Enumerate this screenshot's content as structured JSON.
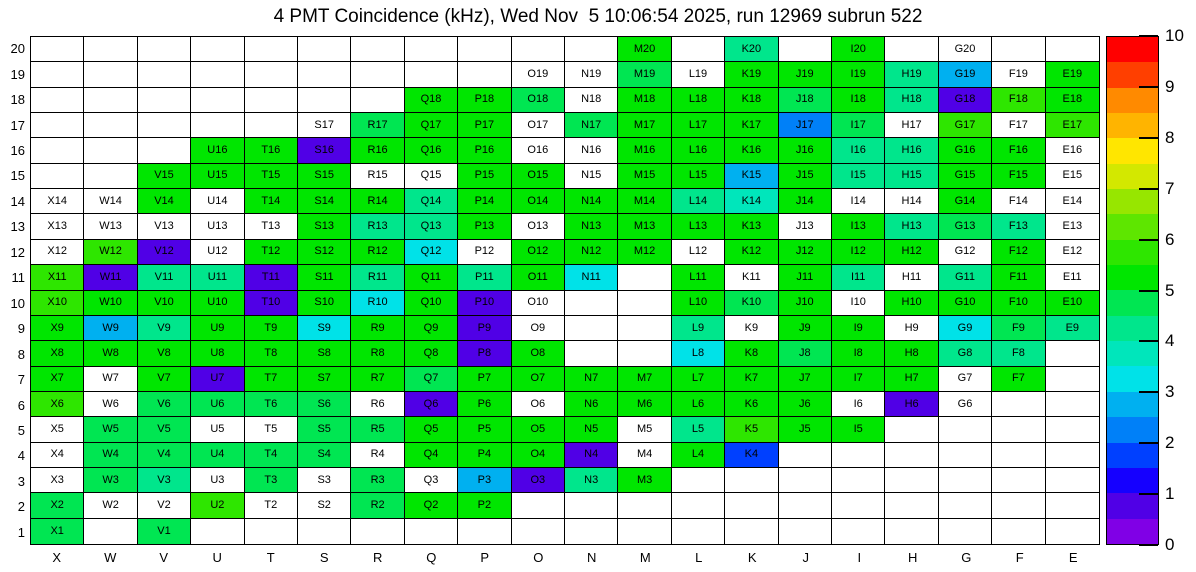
{
  "title": "4 PMT Coincidence (kHz), Wed Nov  5 10:06:54 2025, run 12969 subrun 522",
  "chart_data": {
    "type": "heatmap",
    "title": "4 PMT Coincidence (kHz), Wed Nov  5 10:06:54 2025, run 12969 subrun 522",
    "unit": "kHz",
    "columns": [
      "X",
      "W",
      "V",
      "U",
      "T",
      "S",
      "R",
      "Q",
      "P",
      "O",
      "N",
      "M",
      "L",
      "K",
      "J",
      "I",
      "H",
      "G",
      "F",
      "E"
    ],
    "rows": [
      20,
      19,
      18,
      17,
      16,
      15,
      14,
      13,
      12,
      11,
      10,
      9,
      8,
      7,
      6,
      5,
      4,
      3,
      2,
      1
    ],
    "scale": {
      "min": 0,
      "max": 10,
      "ticks": [
        0,
        1,
        2,
        3,
        4,
        5,
        6,
        7,
        8,
        9,
        10
      ]
    },
    "colormap_bands": [
      "#8000e6",
      "#5000e6",
      "#1500ff",
      "#0040ff",
      "#0080f8",
      "#00b0f0",
      "#00e2e8",
      "#00e6bb",
      "#00e68c",
      "#00e652",
      "#00e600",
      "#2ee600",
      "#5ee600",
      "#97e600",
      "#d3e800",
      "#ffe600",
      "#ffb400",
      "#ff8a00",
      "#ff3f00",
      "#ff0000"
    ],
    "cells": [
      [
        null,
        null,
        null,
        null,
        null,
        null,
        null,
        null,
        null,
        null,
        null,
        [
          "M20",
          5.2
        ],
        null,
        [
          "K20",
          4.3
        ],
        null,
        [
          "I20",
          5.2
        ],
        null,
        [
          "G20",
          null
        ],
        null,
        null
      ],
      [
        null,
        null,
        null,
        null,
        null,
        null,
        null,
        null,
        null,
        [
          "O19",
          null
        ],
        [
          "N19",
          null
        ],
        [
          "M19",
          4.7
        ],
        [
          "L19",
          null
        ],
        [
          "K19",
          5.2
        ],
        [
          "J19",
          5.2
        ],
        [
          "I19",
          5.2
        ],
        [
          "H19",
          4.3
        ],
        [
          "G19",
          2.7
        ],
        [
          "F19",
          null
        ],
        [
          "E19",
          5.2
        ]
      ],
      [
        null,
        null,
        null,
        null,
        null,
        null,
        null,
        [
          "Q18",
          5.2
        ],
        [
          "P18",
          5.2
        ],
        [
          "O18",
          4.7
        ],
        [
          "N18",
          null
        ],
        [
          "M18",
          5.2
        ],
        [
          "L18",
          5.2
        ],
        [
          "K18",
          5.2
        ],
        [
          "J18",
          4.7
        ],
        [
          "I18",
          5.2
        ],
        [
          "H18",
          4.3
        ],
        [
          "G18",
          0.7
        ],
        [
          "F18",
          5.8
        ],
        [
          "E18",
          5.2
        ]
      ],
      [
        null,
        null,
        null,
        null,
        null,
        [
          "S17",
          null
        ],
        [
          "R17",
          4.7
        ],
        [
          "Q17",
          5.2
        ],
        [
          "P17",
          5.2
        ],
        [
          "O17",
          null
        ],
        [
          "N17",
          4.7
        ],
        [
          "M17",
          5.2
        ],
        [
          "L17",
          5.2
        ],
        [
          "K17",
          5.2
        ],
        [
          "J17",
          2.2
        ],
        [
          "I17",
          4.7
        ],
        [
          "H17",
          null
        ],
        [
          "G17",
          5.8
        ],
        [
          "F17",
          null
        ],
        [
          "E17",
          5.8
        ]
      ],
      [
        null,
        null,
        null,
        [
          "U16",
          5.2
        ],
        [
          "T16",
          5.2
        ],
        [
          "S16",
          0.7
        ],
        [
          "R16",
          5.2
        ],
        [
          "Q16",
          5.2
        ],
        [
          "P16",
          5.2
        ],
        [
          "O16",
          null
        ],
        [
          "N16",
          null
        ],
        [
          "M16",
          5.2
        ],
        [
          "L16",
          5.2
        ],
        [
          "K16",
          5.2
        ],
        [
          "J16",
          5.2
        ],
        [
          "I16",
          4.3
        ],
        [
          "H16",
          4.3
        ],
        [
          "G16",
          5.2
        ],
        [
          "F16",
          5.2
        ],
        [
          "E16",
          null
        ]
      ],
      [
        null,
        null,
        [
          "V15",
          5.2
        ],
        [
          "U15",
          5.2
        ],
        [
          "T15",
          5.2
        ],
        [
          "S15",
          5.2
        ],
        [
          "R15",
          null
        ],
        [
          "Q15",
          null
        ],
        [
          "P15",
          5.2
        ],
        [
          "O15",
          5.2
        ],
        [
          "N15",
          null
        ],
        [
          "M15",
          5.2
        ],
        [
          "L15",
          5.2
        ],
        [
          "K15",
          2.7
        ],
        [
          "J15",
          5.2
        ],
        [
          "I15",
          4.3
        ],
        [
          "H15",
          4.3
        ],
        [
          "G15",
          5.2
        ],
        [
          "F15",
          5.2
        ],
        [
          "E15",
          null
        ]
      ],
      [
        [
          "X14",
          null
        ],
        [
          "W14",
          null
        ],
        [
          "V14",
          5.2
        ],
        [
          "U14",
          null
        ],
        [
          "T14",
          5.2
        ],
        [
          "S14",
          5.2
        ],
        [
          "R14",
          5.2
        ],
        [
          "Q14",
          4.3
        ],
        [
          "P14",
          5.2
        ],
        [
          "O14",
          5.2
        ],
        [
          "N14",
          5.2
        ],
        [
          "M14",
          5.2
        ],
        [
          "L14",
          4.3
        ],
        [
          "K14",
          3.7
        ],
        [
          "J14",
          5.2
        ],
        [
          "I14",
          null
        ],
        [
          "H14",
          null
        ],
        [
          "G14",
          5.2
        ],
        [
          "F14",
          null
        ],
        [
          "E14",
          null
        ]
      ],
      [
        [
          "X13",
          null
        ],
        [
          "W13",
          null
        ],
        [
          "V13",
          null
        ],
        [
          "U13",
          null
        ],
        [
          "T13",
          null
        ],
        [
          "S13",
          5.2
        ],
        [
          "R13",
          4.3
        ],
        [
          "Q13",
          4.3
        ],
        [
          "P13",
          5.2
        ],
        [
          "O13",
          null
        ],
        [
          "N13",
          5.2
        ],
        [
          "M13",
          5.2
        ],
        [
          "L13",
          5.2
        ],
        [
          "K13",
          5.2
        ],
        [
          "J13",
          null
        ],
        [
          "I13",
          5.2
        ],
        [
          "H13",
          4.3
        ],
        [
          "G13",
          4.7
        ],
        [
          "F13",
          4.3
        ],
        [
          "E13",
          null
        ]
      ],
      [
        [
          "X12",
          null
        ],
        [
          "W12",
          5.8
        ],
        [
          "V12",
          0.7
        ],
        [
          "U12",
          null
        ],
        [
          "T12",
          5.2
        ],
        [
          "S12",
          5.2
        ],
        [
          "R12",
          5.2
        ],
        [
          "Q12",
          3.2
        ],
        [
          "P12",
          null
        ],
        [
          "O12",
          5.2
        ],
        [
          "N12",
          5.2
        ],
        [
          "M12",
          5.2
        ],
        [
          "L12",
          null
        ],
        [
          "K12",
          5.2
        ],
        [
          "J12",
          5.2
        ],
        [
          "I12",
          5.2
        ],
        [
          "H12",
          5.2
        ],
        [
          "G12",
          null
        ],
        [
          "F12",
          5.2
        ],
        [
          "E12",
          null
        ]
      ],
      [
        [
          "X11",
          5.8
        ],
        [
          "W11",
          0.7
        ],
        [
          "V11",
          4.3
        ],
        [
          "U11",
          4.3
        ],
        [
          "T11",
          0.7
        ],
        [
          "S11",
          5.2
        ],
        [
          "R11",
          4.3
        ],
        [
          "Q11",
          5.2
        ],
        [
          "P11",
          4.3
        ],
        [
          "O11",
          5.2
        ],
        [
          "N11",
          3.2
        ],
        null,
        [
          "L11",
          5.2
        ],
        [
          "K11",
          null
        ],
        [
          "J11",
          5.2
        ],
        [
          "I11",
          4.3
        ],
        [
          "H11",
          null
        ],
        [
          "G11",
          4.3
        ],
        [
          "F11",
          5.2
        ],
        [
          "E11",
          null
        ]
      ],
      [
        [
          "X10",
          5.8
        ],
        [
          "W10",
          5.2
        ],
        [
          "V10",
          5.2
        ],
        [
          "U10",
          5.2
        ],
        [
          "T10",
          0.7
        ],
        [
          "S10",
          5.2
        ],
        [
          "R10",
          3.2
        ],
        [
          "Q10",
          5.2
        ],
        [
          "P10",
          0.7
        ],
        [
          "O10",
          null
        ],
        null,
        null,
        [
          "L10",
          5.2
        ],
        [
          "K10",
          4.7
        ],
        [
          "J10",
          5.2
        ],
        [
          "I10",
          null
        ],
        [
          "H10",
          5.2
        ],
        [
          "G10",
          5.2
        ],
        [
          "F10",
          5.2
        ],
        [
          "E10",
          5.2
        ]
      ],
      [
        [
          "X9",
          5.2
        ],
        [
          "W9",
          2.7
        ],
        [
          "V9",
          4.3
        ],
        [
          "U9",
          5.2
        ],
        [
          "T9",
          5.2
        ],
        [
          "S9",
          3.2
        ],
        [
          "R9",
          5.2
        ],
        [
          "Q9",
          5.2
        ],
        [
          "P9",
          0.7
        ],
        [
          "O9",
          null
        ],
        null,
        null,
        [
          "L9",
          4.3
        ],
        [
          "K9",
          null
        ],
        [
          "J9",
          5.2
        ],
        [
          "I9",
          5.2
        ],
        [
          "H9",
          null
        ],
        [
          "G9",
          3.2
        ],
        [
          "F9",
          4.7
        ],
        [
          "E9",
          4.3
        ]
      ],
      [
        [
          "X8",
          5.2
        ],
        [
          "W8",
          5.2
        ],
        [
          "V8",
          5.2
        ],
        [
          "U8",
          5.2
        ],
        [
          "T8",
          5.2
        ],
        [
          "S8",
          5.2
        ],
        [
          "R8",
          5.2
        ],
        [
          "Q8",
          5.2
        ],
        [
          "P8",
          0.7
        ],
        [
          "O8",
          5.2
        ],
        null,
        null,
        [
          "L8",
          3.2
        ],
        [
          "K8",
          5.2
        ],
        [
          "J8",
          4.7
        ],
        [
          "I8",
          5.2
        ],
        [
          "H8",
          5.2
        ],
        [
          "G8",
          4.3
        ],
        [
          "F8",
          4.3
        ],
        null
      ],
      [
        [
          "X7",
          5.2
        ],
        [
          "W7",
          null
        ],
        [
          "V7",
          5.2
        ],
        [
          "U7",
          0.7
        ],
        [
          "T7",
          5.2
        ],
        [
          "S7",
          5.2
        ],
        [
          "R7",
          5.2
        ],
        [
          "Q7",
          4.7
        ],
        [
          "P7",
          5.2
        ],
        [
          "O7",
          5.2
        ],
        [
          "N7",
          5.2
        ],
        [
          "M7",
          5.2
        ],
        [
          "L7",
          5.2
        ],
        [
          "K7",
          5.2
        ],
        [
          "J7",
          5.2
        ],
        [
          "I7",
          5.2
        ],
        [
          "H7",
          5.2
        ],
        [
          "G7",
          null
        ],
        [
          "F7",
          5.2
        ],
        null
      ],
      [
        [
          "X6",
          5.8
        ],
        [
          "W6",
          null
        ],
        [
          "V6",
          4.7
        ],
        [
          "U6",
          4.7
        ],
        [
          "T6",
          4.7
        ],
        [
          "S6",
          4.7
        ],
        [
          "R6",
          null
        ],
        [
          "Q6",
          0.7
        ],
        [
          "P6",
          5.2
        ],
        [
          "O6",
          null
        ],
        [
          "N6",
          5.2
        ],
        [
          "M6",
          5.2
        ],
        [
          "L6",
          5.2
        ],
        [
          "K6",
          5.2
        ],
        [
          "J6",
          5.2
        ],
        [
          "I6",
          null
        ],
        [
          "H6",
          0.7
        ],
        [
          "G6",
          null
        ],
        null,
        null
      ],
      [
        [
          "X5",
          null
        ],
        [
          "W5",
          4.7
        ],
        [
          "V5",
          4.7
        ],
        [
          "U5",
          null
        ],
        [
          "T5",
          null
        ],
        [
          "S5",
          4.7
        ],
        [
          "R5",
          4.7
        ],
        [
          "Q5",
          5.2
        ],
        [
          "P5",
          5.2
        ],
        [
          "O5",
          5.2
        ],
        [
          "N5",
          5.2
        ],
        [
          "M5",
          null
        ],
        [
          "L5",
          4.3
        ],
        [
          "K5",
          5.8
        ],
        [
          "J5",
          5.2
        ],
        [
          "I5",
          5.2
        ],
        null,
        null,
        null,
        null
      ],
      [
        [
          "X4",
          null
        ],
        [
          "W4",
          4.7
        ],
        [
          "V4",
          4.7
        ],
        [
          "U4",
          4.7
        ],
        [
          "T4",
          4.7
        ],
        [
          "S4",
          4.7
        ],
        [
          "R4",
          null
        ],
        [
          "Q4",
          5.2
        ],
        [
          "P4",
          5.2
        ],
        [
          "O4",
          5.2
        ],
        [
          "N4",
          0.7
        ],
        [
          "M4",
          null
        ],
        [
          "L4",
          5.2
        ],
        [
          "K4",
          1.7
        ],
        null,
        null,
        null,
        null,
        null,
        null
      ],
      [
        [
          "X3",
          null
        ],
        [
          "W3",
          4.7
        ],
        [
          "V3",
          4.3
        ],
        [
          "U3",
          null
        ],
        [
          "T3",
          4.7
        ],
        [
          "S3",
          null
        ],
        [
          "R3",
          4.7
        ],
        [
          "Q3",
          null
        ],
        [
          "P3",
          2.7
        ],
        [
          "O3",
          0.7
        ],
        [
          "N3",
          4.3
        ],
        [
          "M3",
          5.2
        ],
        null,
        null,
        null,
        null,
        null,
        null,
        null,
        null
      ],
      [
        [
          "X2",
          4.7
        ],
        [
          "W2",
          null
        ],
        [
          "V2",
          null
        ],
        [
          "U2",
          5.8
        ],
        [
          "T2",
          null
        ],
        [
          "S2",
          null
        ],
        [
          "R2",
          4.7
        ],
        [
          "Q2",
          5.2
        ],
        [
          "P2",
          5.2
        ],
        null,
        null,
        null,
        null,
        null,
        null,
        null,
        null,
        null,
        null,
        null
      ],
      [
        [
          "X1",
          4.7
        ],
        null,
        [
          "V1",
          4.7
        ],
        null,
        null,
        null,
        null,
        null,
        null,
        null,
        null,
        null,
        null,
        null,
        null,
        null,
        null,
        null,
        null,
        null
      ]
    ]
  }
}
